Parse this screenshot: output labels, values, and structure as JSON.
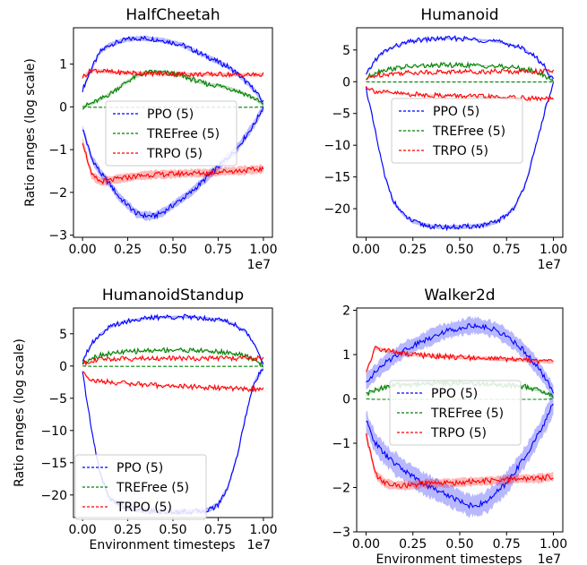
{
  "figure": {
    "ylabel": "Ratio ranges (log scale)",
    "xlabel": "Environment timesteps",
    "x_offset_label": "1e7"
  },
  "colors": {
    "PPO": "#0000ff",
    "TREFree": "#008000",
    "TRPO": "#ff0000"
  },
  "chart_data": [
    {
      "type": "line",
      "title": "HalfCheetah",
      "xlabel": "",
      "ylabel": "Ratio ranges (log scale)",
      "xlim": [
        -0.05,
        1.05
      ],
      "ylim": [
        -3.05,
        1.85
      ],
      "xticks": [
        "0.00",
        "0.25",
        "0.50",
        "0.75",
        "1.00"
      ],
      "yticks": [
        -3,
        -2,
        -1,
        0,
        1
      ],
      "x_scale_note": "1e7",
      "legend": {
        "placement": "center",
        "entries": [
          "PPO (5)",
          "TREFree (5)",
          "TRPO (5)"
        ]
      },
      "x": [
        0,
        0.05,
        0.1,
        0.15,
        0.2,
        0.25,
        0.3,
        0.35,
        0.4,
        0.45,
        0.5,
        0.55,
        0.6,
        0.65,
        0.7,
        0.75,
        0.8,
        0.85,
        0.9,
        0.95,
        1.0
      ],
      "series": [
        {
          "name": "PPO (5)",
          "color": "#0000ff",
          "kind": "upper",
          "values": [
            0.4,
            0.9,
            1.3,
            1.45,
            1.52,
            1.58,
            1.6,
            1.6,
            1.58,
            1.55,
            1.5,
            1.45,
            1.35,
            1.25,
            1.15,
            1.05,
            0.95,
            0.8,
            0.6,
            0.4,
            0.1
          ],
          "band": 0.07
        },
        {
          "name": "PPO (5)",
          "color": "#0000ff",
          "kind": "lower",
          "values": [
            -0.5,
            -1.2,
            -1.55,
            -1.8,
            -2.1,
            -2.3,
            -2.5,
            -2.55,
            -2.55,
            -2.45,
            -2.3,
            -2.15,
            -2.0,
            -1.8,
            -1.6,
            -1.4,
            -1.2,
            -1.0,
            -0.7,
            -0.4,
            0.0
          ],
          "band": 0.12
        },
        {
          "name": "TREFree (5)",
          "color": "#008000",
          "kind": "upper",
          "values": [
            0.0,
            0.08,
            0.18,
            0.3,
            0.45,
            0.6,
            0.72,
            0.8,
            0.82,
            0.8,
            0.78,
            0.72,
            0.65,
            0.58,
            0.52,
            0.5,
            0.45,
            0.38,
            0.3,
            0.2,
            0.05
          ],
          "band": 0.05
        },
        {
          "name": "TREFree (5)",
          "color": "#008000",
          "kind": "lower",
          "values": [
            0.0,
            -0.01,
            -0.01,
            -0.01,
            -0.01,
            -0.01,
            -0.01,
            -0.01,
            -0.01,
            -0.01,
            -0.01,
            -0.01,
            -0.01,
            -0.01,
            -0.01,
            -0.01,
            -0.01,
            -0.01,
            -0.01,
            -0.01,
            0.0
          ],
          "band": 0.0
        },
        {
          "name": "TRPO (5)",
          "color": "#ff0000",
          "kind": "upper",
          "values": [
            0.7,
            0.86,
            0.84,
            0.82,
            0.8,
            0.8,
            0.79,
            0.78,
            0.78,
            0.77,
            0.77,
            0.77,
            0.76,
            0.76,
            0.76,
            0.76,
            0.76,
            0.75,
            0.75,
            0.75,
            0.75
          ],
          "band": 0.05
        },
        {
          "name": "TRPO (5)",
          "color": "#ff0000",
          "kind": "lower",
          "values": [
            -0.8,
            -1.6,
            -1.75,
            -1.72,
            -1.68,
            -1.65,
            -1.62,
            -1.6,
            -1.58,
            -1.58,
            -1.57,
            -1.56,
            -1.55,
            -1.55,
            -1.55,
            -1.52,
            -1.5,
            -1.5,
            -1.48,
            -1.47,
            -1.45
          ],
          "band": 0.12
        }
      ]
    },
    {
      "type": "line",
      "title": "Humanoid",
      "xlabel": "",
      "ylabel": "",
      "xlim": [
        -0.05,
        1.05
      ],
      "ylim": [
        -24.5,
        8.5
      ],
      "xticks": [
        "0.00",
        "0.25",
        "0.50",
        "0.75",
        "1.00"
      ],
      "yticks": [
        -20,
        -15,
        -10,
        -5,
        0,
        5
      ],
      "x_scale_note": "1e7",
      "legend": {
        "placement": "center",
        "entries": [
          "PPO (5)",
          "TREFree (5)",
          "TRPO (5)"
        ]
      },
      "x": [
        0,
        0.05,
        0.1,
        0.15,
        0.2,
        0.25,
        0.3,
        0.35,
        0.4,
        0.45,
        0.5,
        0.55,
        0.6,
        0.65,
        0.7,
        0.75,
        0.8,
        0.85,
        0.9,
        0.95,
        1.0
      ],
      "series": [
        {
          "name": "PPO (5)",
          "color": "#0000ff",
          "kind": "upper",
          "values": [
            1.0,
            3.5,
            4.8,
            5.5,
            6.0,
            6.4,
            6.6,
            6.7,
            6.8,
            6.8,
            6.8,
            6.7,
            6.6,
            6.5,
            6.3,
            6.0,
            5.6,
            5.0,
            4.0,
            2.5,
            0.2
          ],
          "band": 0.2
        },
        {
          "name": "PPO (5)",
          "color": "#0000ff",
          "kind": "lower",
          "values": [
            -1.0,
            -8.0,
            -15.0,
            -19.0,
            -21.0,
            -22.0,
            -22.5,
            -22.8,
            -22.9,
            -22.9,
            -22.9,
            -22.8,
            -22.7,
            -22.5,
            -22.0,
            -21.0,
            -19.5,
            -16.0,
            -11.0,
            -5.0,
            -0.3
          ],
          "band": 0.4
        },
        {
          "name": "TREFree (5)",
          "color": "#008000",
          "kind": "upper",
          "values": [
            0.5,
            1.5,
            1.9,
            2.1,
            2.3,
            2.4,
            2.5,
            2.5,
            2.6,
            2.6,
            2.6,
            2.6,
            2.5,
            2.5,
            2.4,
            2.3,
            2.2,
            2.0,
            1.6,
            1.0,
            0.1
          ],
          "band": 0.1
        },
        {
          "name": "TREFree (5)",
          "color": "#008000",
          "kind": "lower",
          "values": [
            0.0,
            -0.05,
            -0.05,
            -0.05,
            -0.05,
            -0.05,
            -0.05,
            -0.05,
            -0.05,
            -0.05,
            -0.05,
            -0.05,
            -0.05,
            -0.05,
            -0.05,
            -0.05,
            -0.05,
            -0.05,
            -0.05,
            -0.05,
            0.0
          ],
          "band": 0.0
        },
        {
          "name": "TRPO (5)",
          "color": "#ff0000",
          "kind": "upper",
          "values": [
            0.3,
            1.0,
            1.2,
            1.3,
            1.4,
            1.45,
            1.5,
            1.5,
            1.55,
            1.55,
            1.6,
            1.6,
            1.6,
            1.6,
            1.62,
            1.62,
            1.62,
            1.63,
            1.63,
            1.64,
            1.65
          ],
          "band": 0.05
        },
        {
          "name": "TRPO (5)",
          "color": "#ff0000",
          "kind": "lower",
          "values": [
            -0.8,
            -1.5,
            -1.7,
            -1.8,
            -1.9,
            -2.0,
            -2.05,
            -2.1,
            -2.15,
            -2.2,
            -2.25,
            -2.3,
            -2.35,
            -2.4,
            -2.45,
            -2.5,
            -2.55,
            -2.6,
            -2.65,
            -2.7,
            -2.7
          ],
          "band": 0.1
        }
      ]
    },
    {
      "type": "line",
      "title": "HumanoidStandup",
      "xlabel": "Environment timesteps",
      "ylabel": "Ratio ranges (log scale)",
      "xlim": [
        -0.05,
        1.05
      ],
      "ylim": [
        -23.5,
        9.0
      ],
      "xticks": [
        "0.00",
        "0.25",
        "0.50",
        "0.75",
        "1.00"
      ],
      "yticks": [
        -20,
        -15,
        -10,
        -5,
        0,
        5
      ],
      "x_scale_note": "1e7",
      "legend": {
        "placement": "lower left",
        "entries": [
          "PPO (5)",
          "TREFree (5)",
          "TRPO (5)"
        ]
      },
      "x": [
        0,
        0.05,
        0.1,
        0.15,
        0.2,
        0.25,
        0.3,
        0.35,
        0.4,
        0.45,
        0.5,
        0.55,
        0.6,
        0.65,
        0.7,
        0.75,
        0.8,
        0.85,
        0.9,
        0.95,
        1.0
      ],
      "series": [
        {
          "name": "PPO (5)",
          "color": "#0000ff",
          "kind": "upper",
          "values": [
            1.0,
            3.5,
            5.0,
            6.0,
            6.6,
            7.0,
            7.2,
            7.4,
            7.5,
            7.6,
            7.6,
            7.6,
            7.6,
            7.5,
            7.4,
            7.2,
            6.9,
            6.3,
            5.3,
            3.5,
            0.5
          ],
          "band": 0.25
        },
        {
          "name": "PPO (5)",
          "color": "#0000ff",
          "kind": "lower",
          "values": [
            -1.0,
            -10.0,
            -17.0,
            -20.5,
            -21.5,
            -22.0,
            -22.3,
            -22.5,
            -22.5,
            -22.6,
            -22.6,
            -22.6,
            -22.6,
            -22.5,
            -22.3,
            -21.5,
            -19.0,
            -14.5,
            -8.0,
            -2.5,
            -0.3
          ],
          "band": 0.5
        },
        {
          "name": "TREFree (5)",
          "color": "#008000",
          "kind": "upper",
          "values": [
            0.5,
            1.3,
            1.7,
            1.9,
            2.1,
            2.2,
            2.3,
            2.4,
            2.4,
            2.5,
            2.5,
            2.5,
            2.4,
            2.4,
            2.3,
            2.2,
            2.1,
            1.9,
            1.5,
            1.0,
            0.1
          ],
          "band": 0.1
        },
        {
          "name": "TREFree (5)",
          "color": "#008000",
          "kind": "lower",
          "values": [
            0.0,
            -0.05,
            -0.05,
            -0.05,
            -0.05,
            -0.05,
            -0.05,
            -0.05,
            -0.05,
            -0.05,
            -0.05,
            -0.05,
            -0.05,
            -0.05,
            -0.05,
            -0.05,
            -0.05,
            -0.05,
            -0.05,
            -0.05,
            0.0
          ],
          "band": 0.0
        },
        {
          "name": "TRPO (5)",
          "color": "#ff0000",
          "kind": "upper",
          "values": [
            0.3,
            0.9,
            1.0,
            1.1,
            1.1,
            1.15,
            1.15,
            1.2,
            1.2,
            1.2,
            1.2,
            1.2,
            1.2,
            1.2,
            1.2,
            1.2,
            1.2,
            1.2,
            1.2,
            1.2,
            1.2
          ],
          "band": 0.05
        },
        {
          "name": "TRPO (5)",
          "color": "#ff0000",
          "kind": "lower",
          "values": [
            -0.8,
            -2.2,
            -2.4,
            -2.5,
            -2.6,
            -2.7,
            -2.8,
            -2.9,
            -3.0,
            -3.05,
            -3.1,
            -3.15,
            -3.2,
            -3.3,
            -3.35,
            -3.4,
            -3.45,
            -3.5,
            -3.55,
            -3.6,
            -3.6
          ],
          "band": 0.1
        }
      ]
    },
    {
      "type": "line",
      "title": "Walker2d",
      "xlabel": "Environment timesteps",
      "ylabel": "",
      "xlim": [
        -0.05,
        1.05
      ],
      "ylim": [
        -3.0,
        2.05
      ],
      "xticks": [
        "0.00",
        "0.25",
        "0.50",
        "0.75",
        "1.00"
      ],
      "yticks": [
        -3,
        -2,
        -1,
        0,
        1,
        2
      ],
      "x_scale_note": "1e7",
      "legend": {
        "placement": "center",
        "entries": [
          "PPO (5)",
          "TREFree (5)",
          "TRPO (5)"
        ]
      },
      "x": [
        0,
        0.05,
        0.1,
        0.15,
        0.2,
        0.25,
        0.3,
        0.35,
        0.4,
        0.45,
        0.5,
        0.55,
        0.6,
        0.65,
        0.7,
        0.75,
        0.8,
        0.85,
        0.9,
        0.95,
        1.0
      ],
      "series": [
        {
          "name": "PPO (5)",
          "color": "#0000ff",
          "kind": "upper",
          "values": [
            0.4,
            0.6,
            0.8,
            0.95,
            1.1,
            1.2,
            1.3,
            1.4,
            1.5,
            1.55,
            1.6,
            1.65,
            1.65,
            1.6,
            1.55,
            1.4,
            1.25,
            1.05,
            0.8,
            0.5,
            0.15
          ],
          "band": 0.22
        },
        {
          "name": "PPO (5)",
          "color": "#0000ff",
          "kind": "lower",
          "values": [
            -0.5,
            -1.0,
            -1.25,
            -1.45,
            -1.6,
            -1.75,
            -1.9,
            -2.0,
            -2.1,
            -2.2,
            -2.3,
            -2.4,
            -2.4,
            -2.3,
            -2.1,
            -1.9,
            -1.6,
            -1.3,
            -0.95,
            -0.55,
            -0.1
          ],
          "band": 0.3
        },
        {
          "name": "TREFree (5)",
          "color": "#008000",
          "kind": "upper",
          "values": [
            0.1,
            0.2,
            0.27,
            0.3,
            0.32,
            0.33,
            0.34,
            0.35,
            0.35,
            0.35,
            0.35,
            0.35,
            0.35,
            0.34,
            0.33,
            0.32,
            0.3,
            0.27,
            0.22,
            0.15,
            0.05
          ],
          "band": 0.04
        },
        {
          "name": "TREFree (5)",
          "color": "#008000",
          "kind": "lower",
          "values": [
            0.0,
            -0.01,
            -0.01,
            -0.01,
            -0.01,
            -0.01,
            -0.01,
            -0.01,
            -0.01,
            -0.01,
            -0.01,
            -0.01,
            -0.01,
            -0.01,
            -0.01,
            -0.01,
            -0.01,
            -0.01,
            -0.01,
            -0.01,
            0.0
          ],
          "band": 0.0
        },
        {
          "name": "TRPO (5)",
          "color": "#ff0000",
          "kind": "upper",
          "values": [
            0.6,
            1.15,
            1.1,
            1.05,
            1.02,
            1.0,
            0.98,
            0.97,
            0.96,
            0.95,
            0.94,
            0.93,
            0.92,
            0.91,
            0.9,
            0.89,
            0.88,
            0.87,
            0.86,
            0.85,
            0.82
          ],
          "band": 0.05
        },
        {
          "name": "TRPO (5)",
          "color": "#ff0000",
          "kind": "lower",
          "values": [
            -0.8,
            -1.7,
            -1.9,
            -1.95,
            -1.95,
            -1.95,
            -1.92,
            -1.9,
            -1.9,
            -1.9,
            -1.88,
            -1.87,
            -1.86,
            -1.85,
            -1.84,
            -1.83,
            -1.8,
            -1.8,
            -1.8,
            -1.78,
            -1.75
          ],
          "band": 0.12
        }
      ]
    }
  ]
}
